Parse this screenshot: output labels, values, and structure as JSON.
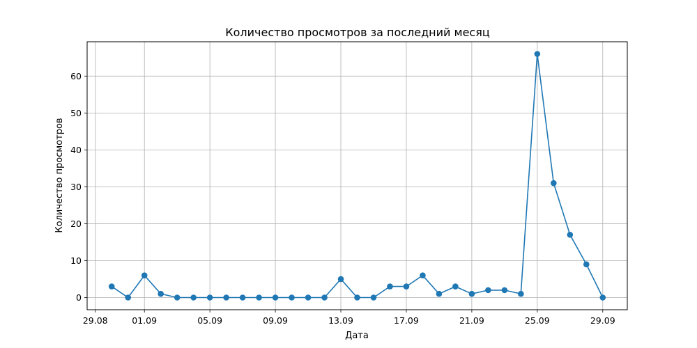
{
  "chart_data": {
    "type": "line",
    "title": "Количество просмотров за последний месяц",
    "xlabel": "Дата",
    "ylabel": "Количество просмотров",
    "grid": true,
    "color": "#1f77b4",
    "x": [
      "2024-08-30",
      "2024-08-31",
      "2024-09-01",
      "2024-09-02",
      "2024-09-03",
      "2024-09-04",
      "2024-09-05",
      "2024-09-06",
      "2024-09-07",
      "2024-09-08",
      "2024-09-09",
      "2024-09-10",
      "2024-09-11",
      "2024-09-12",
      "2024-09-13",
      "2024-09-14",
      "2024-09-15",
      "2024-09-16",
      "2024-09-17",
      "2024-09-18",
      "2024-09-19",
      "2024-09-20",
      "2024-09-21",
      "2024-09-22",
      "2024-09-23",
      "2024-09-24",
      "2024-09-25",
      "2024-09-26",
      "2024-09-27",
      "2024-09-28",
      "2024-09-29"
    ],
    "values": [
      3,
      0,
      6,
      1,
      0,
      0,
      0,
      0,
      0,
      0,
      0,
      0,
      0,
      0,
      5,
      0,
      0,
      3,
      3,
      6,
      1,
      3,
      1,
      2,
      2,
      1,
      66,
      31,
      17,
      9,
      0
    ],
    "xticks": [
      {
        "date": "2024-08-29",
        "label": "29.08"
      },
      {
        "date": "2024-09-01",
        "label": "01.09"
      },
      {
        "date": "2024-09-05",
        "label": "05.09"
      },
      {
        "date": "2024-09-09",
        "label": "09.09"
      },
      {
        "date": "2024-09-13",
        "label": "13.09"
      },
      {
        "date": "2024-09-17",
        "label": "17.09"
      },
      {
        "date": "2024-09-21",
        "label": "21.09"
      },
      {
        "date": "2024-09-25",
        "label": "25.09"
      },
      {
        "date": "2024-09-29",
        "label": "29.09"
      }
    ],
    "yticks": [
      0,
      10,
      20,
      30,
      40,
      50,
      60
    ],
    "xlim": [
      "2024-08-28T12:00",
      "2024-09-30T12:00"
    ],
    "ylim": [
      -3.3,
      69.3
    ]
  }
}
